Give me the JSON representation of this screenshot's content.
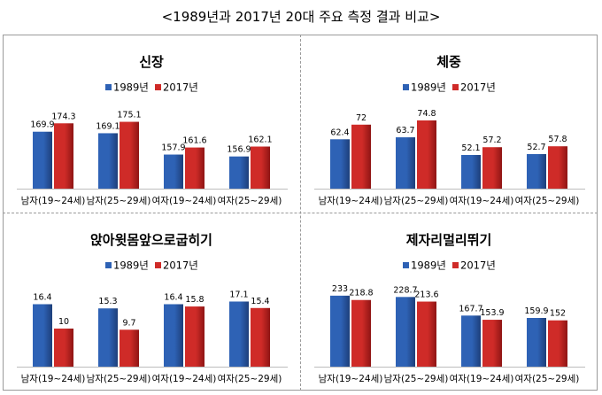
{
  "page": {
    "title": "<1989년과 2017년 20대 주요 측정 결과 비교>"
  },
  "colors": {
    "series_1989": "#2e62b5",
    "series_2017": "#cf2b28",
    "series_1989_dark": "#1d3f7a",
    "series_2017_dark": "#8f1514"
  },
  "chart_data": [
    {
      "type": "bar",
      "title": "신장",
      "categories": [
        "남자(19~24세)",
        "남자(25~29세)",
        "여자(19~24세)",
        "여자(25~29세)"
      ],
      "series": [
        {
          "name": "1989년",
          "values": [
            169.9,
            169.1,
            157.9,
            156.9
          ]
        },
        {
          "name": "2017년",
          "values": [
            174.3,
            175.1,
            161.6,
            162.1
          ]
        }
      ],
      "labels": [
        [
          "169.9",
          "169.1",
          "157.9",
          "156.9"
        ],
        [
          "174.3",
          "175.1",
          "161.6",
          "162.1"
        ]
      ],
      "ylim": [
        140,
        180
      ],
      "legend": "top-center",
      "grid": false
    },
    {
      "type": "bar",
      "title": "체중",
      "categories": [
        "남자(19~24세)",
        "남자(25~29세)",
        "여자(19~24세)",
        "여자(25~29세)"
      ],
      "series": [
        {
          "name": "1989년",
          "values": [
            62.4,
            63.7,
            52.1,
            52.7
          ]
        },
        {
          "name": "2017년",
          "values": [
            72,
            74.8,
            57.2,
            57.8
          ]
        }
      ],
      "labels": [
        [
          "62.4",
          "63.7",
          "52.1",
          "52.7"
        ],
        [
          "72",
          "74.8",
          "57.2",
          "57.8"
        ]
      ],
      "ylim": [
        30,
        80
      ],
      "legend": "top-center",
      "grid": false
    },
    {
      "type": "bar",
      "title": "앉아윗몸앞으로굽히기",
      "categories": [
        "남자(19~24세)",
        "남자(25~29세)",
        "여자(19~24세)",
        "여자(25~29세)"
      ],
      "series": [
        {
          "name": "1989년",
          "values": [
            16.4,
            15.3,
            16.4,
            17.1
          ]
        },
        {
          "name": "2017년",
          "values": [
            10,
            9.7,
            15.8,
            15.4
          ]
        }
      ],
      "labels": [
        [
          "16.4",
          "15.3",
          "16.4",
          "17.1"
        ],
        [
          "10",
          "9.7",
          "15.8",
          "15.4"
        ]
      ],
      "ylim": [
        0,
        20
      ],
      "legend": "top-center",
      "grid": false
    },
    {
      "type": "bar",
      "title": "제자리멀리뛰기",
      "categories": [
        "남자(19~24세)",
        "남자(25~29세)",
        "여자(19~24세)",
        "여자(25~29세)"
      ],
      "series": [
        {
          "name": "1989년",
          "values": [
            233,
            228.7,
            167.7,
            159.9
          ]
        },
        {
          "name": "2017년",
          "values": [
            218.8,
            213.6,
            153.9,
            152
          ]
        }
      ],
      "labels": [
        [
          "233",
          "228.7",
          "167.7",
          "159.9"
        ],
        [
          "218.8",
          "213.6",
          "153.9",
          "152"
        ]
      ],
      "ylim": [
        0,
        250
      ],
      "legend": "top-center",
      "grid": false
    }
  ]
}
